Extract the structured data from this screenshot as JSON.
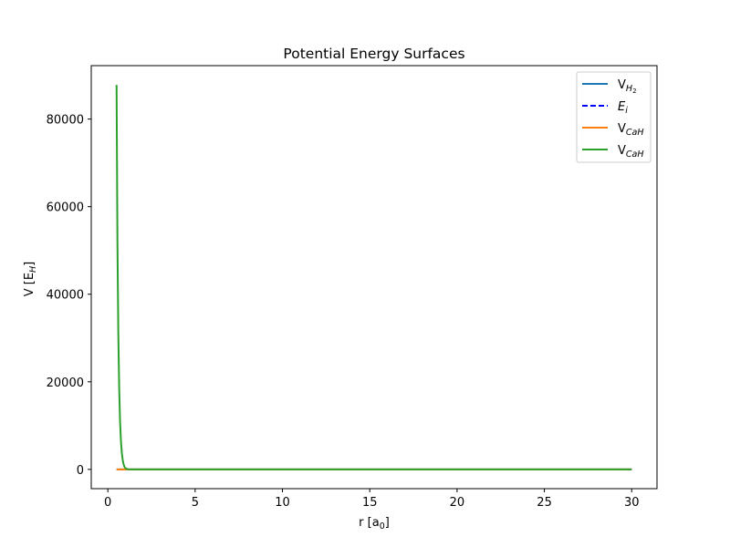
{
  "chart_data": {
    "type": "line",
    "title": "Potential Energy Surfaces",
    "xlabel": "r [a0]",
    "ylabel": "V [EH]",
    "xlim": [
      -0.95,
      31.45
    ],
    "ylim": [
      -4400,
      92200
    ],
    "xticks": [
      0,
      5,
      10,
      15,
      20,
      25,
      30
    ],
    "yticks": [
      0,
      20000,
      40000,
      60000,
      80000
    ],
    "grid": false,
    "legend_position": "top-right",
    "series": [
      {
        "name": "V_H2",
        "color": "#1f77b4",
        "style": "solid",
        "x": [
          0.5,
          1.0,
          2.0,
          5.0,
          10.0,
          20.0,
          30.0
        ],
        "y": [
          0,
          0,
          0,
          0,
          0,
          0,
          0
        ]
      },
      {
        "name": "E_i",
        "color": "#0000ff",
        "style": "dashed",
        "x": [],
        "y": []
      },
      {
        "name": "V_CaH",
        "color": "#ff7f0e",
        "style": "solid",
        "x": [
          0.5,
          1.0,
          2.0,
          5.0,
          10.0,
          20.0,
          30.0
        ],
        "y": [
          0,
          0,
          0,
          0,
          0,
          0,
          0
        ]
      },
      {
        "name": "V_CaH",
        "color": "#2ca02c",
        "style": "solid",
        "x": [
          0.5,
          0.55,
          0.6,
          0.65,
          0.7,
          0.75,
          0.8,
          0.85,
          0.9,
          0.95,
          1.0,
          1.1,
          1.2,
          1.5,
          2.0,
          5.0,
          10.0,
          20.0,
          30.0
        ],
        "y": [
          87800,
          52000,
          31000,
          18500,
          11000,
          6500,
          3800,
          2200,
          1200,
          600,
          300,
          80,
          20,
          0,
          0,
          0,
          0,
          0,
          0
        ]
      }
    ]
  },
  "legend": {
    "items": [
      {
        "main": "V",
        "sub": "H",
        "subsub": "2",
        "italic_main": false
      },
      {
        "main": "E",
        "sub": "i",
        "subsub": "",
        "italic_main": true
      },
      {
        "main": "V",
        "sub": "CaH",
        "subsub": "",
        "italic_main": false
      },
      {
        "main": "V",
        "sub": "CaH",
        "subsub": "",
        "italic_main": false
      }
    ]
  },
  "labels": {
    "x_main": "r [a",
    "x_sub": "0",
    "x_close": "]",
    "y_main": "V [E",
    "y_sub": "H",
    "y_close": "]"
  }
}
